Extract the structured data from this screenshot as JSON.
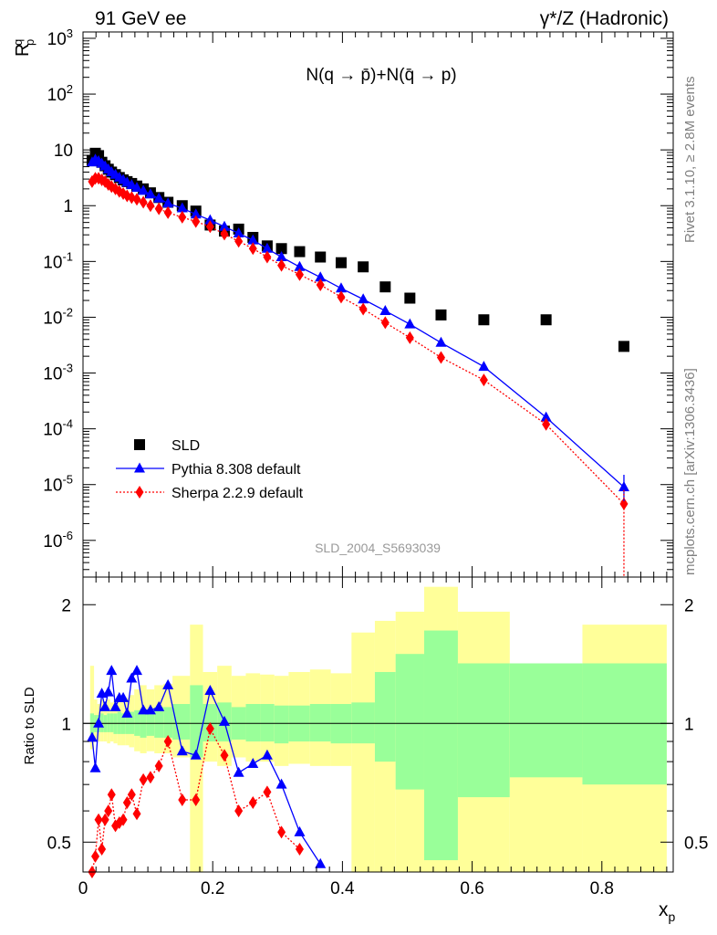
{
  "header": {
    "left": "91 GeV ee",
    "right": "γ*/Z (Hadronic)"
  },
  "side_labels": {
    "top": "Rivet 3.1.10, ≥ 2.8M events",
    "bottom": "mcplots.cern.ch [arXiv:1306.3436]"
  },
  "watermark": "SLD_2004_S5693039",
  "chart_data": [
    {
      "type": "scatter",
      "title": "N(q → p̄)+N(q̄ → p)",
      "ylabel": "R_p^q",
      "yscale": "log",
      "xlim": [
        0,
        0.91
      ],
      "ylim": [
        2.2e-07,
        1300
      ],
      "y_tick_labels": [
        "10^-6",
        "10^-5",
        "10^-4",
        "10^-3",
        "10^-2",
        "10^-1",
        "1",
        "10",
        "10^2",
        "10^3"
      ],
      "legend": {
        "placement": "bottom-left",
        "entries": [
          "SLD",
          "Pythia 8.308 default",
          "Sherpa 2.2.9 default"
        ]
      },
      "series": [
        {
          "name": "SLD",
          "color": "#000000",
          "marker": "square",
          "x": [
            0.014,
            0.019,
            0.024,
            0.029,
            0.034,
            0.039,
            0.044,
            0.05,
            0.056,
            0.062,
            0.068,
            0.075,
            0.083,
            0.093,
            0.104,
            0.117,
            0.131,
            0.153,
            0.174,
            0.196,
            0.218,
            0.24,
            0.262,
            0.284,
            0.306,
            0.334,
            0.366,
            0.398,
            0.432,
            0.466,
            0.504,
            0.552,
            0.618,
            0.714,
            0.834
          ],
          "y": [
            6.5,
            8.7,
            7.9,
            6.0,
            5.2,
            4.5,
            4.0,
            3.6,
            3.2,
            2.9,
            2.7,
            2.5,
            2.25,
            2.0,
            1.7,
            1.4,
            1.15,
            1.0,
            0.8,
            0.45,
            0.35,
            0.38,
            0.27,
            0.19,
            0.17,
            0.15,
            0.12,
            0.095,
            0.08,
            0.035,
            0.022,
            0.011,
            0.009,
            0.009,
            0.003
          ]
        },
        {
          "name": "Pythia 8.308 default",
          "color": "#0000ff",
          "marker": "triangle",
          "line": "solid",
          "x": [
            0.014,
            0.019,
            0.024,
            0.029,
            0.034,
            0.039,
            0.044,
            0.05,
            0.056,
            0.062,
            0.068,
            0.075,
            0.083,
            0.093,
            0.104,
            0.117,
            0.131,
            0.153,
            0.174,
            0.196,
            0.218,
            0.24,
            0.262,
            0.284,
            0.306,
            0.334,
            0.366,
            0.398,
            0.432,
            0.466,
            0.504,
            0.552,
            0.618,
            0.714,
            0.834
          ],
          "y": [
            6.0,
            6.7,
            6.3,
            5.7,
            5.1,
            4.5,
            4.0,
            3.6,
            3.2,
            2.9,
            2.6,
            2.35,
            2.1,
            1.85,
            1.6,
            1.35,
            1.1,
            0.9,
            0.7,
            0.55,
            0.42,
            0.32,
            0.24,
            0.17,
            0.12,
            0.08,
            0.052,
            0.033,
            0.021,
            0.013,
            0.0075,
            0.0035,
            0.0013,
            0.00016,
            9e-06
          ]
        },
        {
          "name": "Sherpa 2.2.9 default",
          "color": "#ff0000",
          "marker": "diamond",
          "line": "dotted",
          "x": [
            0.014,
            0.019,
            0.024,
            0.029,
            0.034,
            0.039,
            0.044,
            0.05,
            0.056,
            0.062,
            0.068,
            0.075,
            0.083,
            0.093,
            0.104,
            0.117,
            0.131,
            0.153,
            0.174,
            0.196,
            0.218,
            0.24,
            0.262,
            0.284,
            0.306,
            0.334,
            0.366,
            0.398,
            0.432,
            0.466,
            0.504,
            0.552,
            0.618,
            0.714,
            0.834
          ],
          "y": [
            2.7,
            3.1,
            3.1,
            2.9,
            2.7,
            2.4,
            2.2,
            2.0,
            1.8,
            1.65,
            1.5,
            1.4,
            1.3,
            1.15,
            1.0,
            0.88,
            0.75,
            0.62,
            0.52,
            0.42,
            0.31,
            0.23,
            0.17,
            0.12,
            0.085,
            0.058,
            0.038,
            0.023,
            0.014,
            0.008,
            0.0043,
            0.0019,
            0.00075,
            0.00012,
            4.5e-06
          ]
        }
      ]
    },
    {
      "type": "line",
      "ylabel": "Ratio to SLD",
      "xlabel": "x_p",
      "xlim": [
        0,
        0.91
      ],
      "ylim": [
        0.42,
        2.35
      ],
      "yscale": "log",
      "reference_line": 1,
      "x_tick_labels": [
        "0",
        "0.2",
        "0.4",
        "0.6",
        "0.8"
      ],
      "y_tick_labels": [
        "0.5",
        "1",
        "2"
      ],
      "uncertainty_bands": {
        "colors": {
          "outer": "#ffff99",
          "inner": "#99ff99"
        },
        "bins": [
          {
            "lo": 0.011,
            "hi": 0.017,
            "inner": [
              0.94,
              1.06
            ],
            "outer": [
              0.86,
              1.4
            ]
          },
          {
            "lo": 0.017,
            "hi": 0.022,
            "inner": [
              0.95,
              1.05
            ],
            "outer": [
              0.9,
              1.15
            ]
          },
          {
            "lo": 0.022,
            "hi": 0.027,
            "inner": [
              0.95,
              1.05
            ],
            "outer": [
              0.9,
              1.12
            ]
          },
          {
            "lo": 0.027,
            "hi": 0.032,
            "inner": [
              0.95,
              1.06
            ],
            "outer": [
              0.9,
              1.15
            ]
          },
          {
            "lo": 0.032,
            "hi": 0.037,
            "inner": [
              0.95,
              1.05
            ],
            "outer": [
              0.9,
              1.13
            ]
          },
          {
            "lo": 0.037,
            "hi": 0.042,
            "inner": [
              0.95,
              1.06
            ],
            "outer": [
              0.89,
              1.15
            ]
          },
          {
            "lo": 0.042,
            "hi": 0.047,
            "inner": [
              0.95,
              1.06
            ],
            "outer": [
              0.9,
              1.13
            ]
          },
          {
            "lo": 0.047,
            "hi": 0.053,
            "inner": [
              0.94,
              1.06
            ],
            "outer": [
              0.89,
              1.15
            ]
          },
          {
            "lo": 0.053,
            "hi": 0.059,
            "inner": [
              0.94,
              1.07
            ],
            "outer": [
              0.88,
              1.17
            ]
          },
          {
            "lo": 0.059,
            "hi": 0.065,
            "inner": [
              0.94,
              1.06
            ],
            "outer": [
              0.88,
              1.15
            ]
          },
          {
            "lo": 0.065,
            "hi": 0.071,
            "inner": [
              0.94,
              1.06
            ],
            "outer": [
              0.88,
              1.16
            ]
          },
          {
            "lo": 0.071,
            "hi": 0.079,
            "inner": [
              0.94,
              1.07
            ],
            "outer": [
              0.87,
              1.18
            ]
          },
          {
            "lo": 0.079,
            "hi": 0.088,
            "inner": [
              0.93,
              1.08
            ],
            "outer": [
              0.85,
              1.22
            ]
          },
          {
            "lo": 0.088,
            "hi": 0.098,
            "inner": [
              0.92,
              1.09
            ],
            "outer": [
              0.84,
              1.25
            ]
          },
          {
            "lo": 0.098,
            "hi": 0.11,
            "inner": [
              0.93,
              1.08
            ],
            "outer": [
              0.85,
              1.22
            ]
          },
          {
            "lo": 0.11,
            "hi": 0.124,
            "inner": [
              0.92,
              1.1
            ],
            "outer": [
              0.84,
              1.25
            ]
          },
          {
            "lo": 0.124,
            "hi": 0.138,
            "inner": [
              0.92,
              1.1
            ],
            "outer": [
              0.84,
              1.26
            ]
          },
          {
            "lo": 0.138,
            "hi": 0.165,
            "inner": [
              0.91,
              1.12
            ],
            "outer": [
              0.82,
              1.32
            ]
          },
          {
            "lo": 0.165,
            "hi": 0.185,
            "inner": [
              0.82,
              1.25
            ],
            "outer": [
              0.42,
              1.78
            ]
          },
          {
            "lo": 0.185,
            "hi": 0.207,
            "inner": [
              0.9,
              1.12
            ],
            "outer": [
              0.8,
              1.35
            ]
          },
          {
            "lo": 0.207,
            "hi": 0.229,
            "inner": [
              0.9,
              1.13
            ],
            "outer": [
              0.78,
              1.4
            ]
          },
          {
            "lo": 0.229,
            "hi": 0.251,
            "inner": [
              0.91,
              1.1
            ],
            "outer": [
              0.82,
              1.32
            ]
          },
          {
            "lo": 0.251,
            "hi": 0.273,
            "inner": [
              0.9,
              1.12
            ],
            "outer": [
              0.8,
              1.34
            ]
          },
          {
            "lo": 0.273,
            "hi": 0.295,
            "inner": [
              0.9,
              1.12
            ],
            "outer": [
              0.8,
              1.33
            ]
          },
          {
            "lo": 0.295,
            "hi": 0.317,
            "inner": [
              0.89,
              1.11
            ],
            "outer": [
              0.78,
              1.32
            ]
          },
          {
            "lo": 0.317,
            "hi": 0.35,
            "inner": [
              0.9,
              1.11
            ],
            "outer": [
              0.79,
              1.35
            ]
          },
          {
            "lo": 0.35,
            "hi": 0.382,
            "inner": [
              0.9,
              1.12
            ],
            "outer": [
              0.78,
              1.37
            ]
          },
          {
            "lo": 0.382,
            "hi": 0.414,
            "inner": [
              0.89,
              1.12
            ],
            "outer": [
              0.78,
              1.34
            ]
          },
          {
            "lo": 0.414,
            "hi": 0.45,
            "inner": [
              0.89,
              1.13
            ],
            "outer": [
              0.42,
              1.7
            ]
          },
          {
            "lo": 0.45,
            "hi": 0.482,
            "inner": [
              0.8,
              1.35
            ],
            "outer": [
              0.42,
              1.82
            ]
          },
          {
            "lo": 0.482,
            "hi": 0.526,
            "inner": [
              0.68,
              1.5
            ],
            "outer": [
              0.42,
              1.92
            ]
          },
          {
            "lo": 0.526,
            "hi": 0.578,
            "inner": [
              0.45,
              1.72
            ],
            "outer": [
              0.42,
              2.22
            ]
          },
          {
            "lo": 0.578,
            "hi": 0.658,
            "inner": [
              0.65,
              1.42
            ],
            "outer": [
              0.42,
              1.92
            ]
          },
          {
            "lo": 0.658,
            "hi": 0.77,
            "inner": [
              0.73,
              1.42
            ],
            "outer": [
              0.42,
              1.4
            ]
          },
          {
            "lo": 0.77,
            "hi": 0.9,
            "inner": [
              0.7,
              1.42
            ],
            "outer": [
              0.42,
              1.78
            ]
          }
        ]
      },
      "series": [
        {
          "name": "Pythia 8.308 default",
          "color": "#0000ff",
          "marker": "triangle",
          "line": "solid",
          "x": [
            0.014,
            0.019,
            0.024,
            0.029,
            0.034,
            0.039,
            0.044,
            0.05,
            0.056,
            0.062,
            0.068,
            0.075,
            0.083,
            0.093,
            0.104,
            0.117,
            0.131,
            0.153,
            0.174,
            0.196,
            0.218,
            0.24,
            0.262,
            0.284,
            0.306,
            0.334,
            0.366
          ],
          "y": [
            0.92,
            0.77,
            1.0,
            1.19,
            1.1,
            1.2,
            1.36,
            1.1,
            1.16,
            1.16,
            1.06,
            1.3,
            1.36,
            1.08,
            1.08,
            1.1,
            1.25,
            0.85,
            0.83,
            1.21,
            1.01,
            0.75,
            0.79,
            0.83,
            0.7,
            0.53,
            0.44
          ]
        },
        {
          "name": "Sherpa 2.2.9 default",
          "color": "#ff0000",
          "marker": "diamond",
          "line": "dotted",
          "x": [
            0.014,
            0.019,
            0.024,
            0.029,
            0.034,
            0.039,
            0.044,
            0.05,
            0.056,
            0.062,
            0.068,
            0.075,
            0.083,
            0.093,
            0.104,
            0.117,
            0.131,
            0.153,
            0.174,
            0.196,
            0.218,
            0.24,
            0.262,
            0.284,
            0.306,
            0.334
          ],
          "y": [
            0.42,
            0.46,
            0.57,
            0.48,
            0.57,
            0.6,
            0.66,
            0.55,
            0.56,
            0.57,
            0.63,
            0.66,
            0.59,
            0.72,
            0.73,
            0.78,
            0.9,
            0.64,
            0.64,
            0.97,
            0.83,
            0.6,
            0.63,
            0.67,
            0.53,
            0.48
          ]
        }
      ]
    }
  ]
}
